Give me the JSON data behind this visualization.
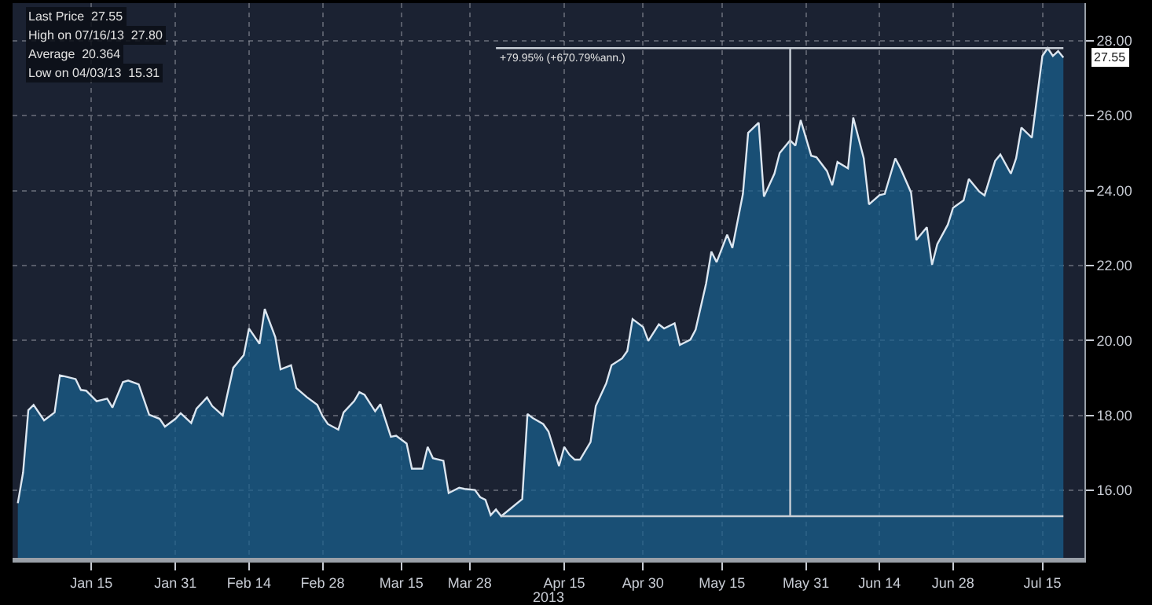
{
  "chart_data": {
    "type": "area",
    "xlabel": "2013",
    "xlim": [
      "2012-12-31",
      "2013-07-23"
    ],
    "xticks": [
      {
        "value": "2013-01-15",
        "label": "Jan 15"
      },
      {
        "value": "2013-01-31",
        "label": "Jan 31"
      },
      {
        "value": "2013-02-14",
        "label": "Feb 14"
      },
      {
        "value": "2013-02-28",
        "label": "Feb 28"
      },
      {
        "value": "2013-03-15",
        "label": "Mar 15"
      },
      {
        "value": "2013-03-28",
        "label": "Mar 28"
      },
      {
        "value": "2013-04-15",
        "label": "Apr 15"
      },
      {
        "value": "2013-04-30",
        "label": "Apr 30"
      },
      {
        "value": "2013-05-15",
        "label": "May 15"
      },
      {
        "value": "2013-05-31",
        "label": "May 31"
      },
      {
        "value": "2013-06-14",
        "label": "Jun 14"
      },
      {
        "value": "2013-06-28",
        "label": "Jun 28"
      },
      {
        "value": "2013-07-15",
        "label": "Jul 15"
      }
    ],
    "ylim": [
      14.2,
      29.0
    ],
    "yticks": [
      {
        "value": 16,
        "label": "16.00"
      },
      {
        "value": 18,
        "label": "18.00"
      },
      {
        "value": 20,
        "label": "20.00"
      },
      {
        "value": 22,
        "label": "22.00"
      },
      {
        "value": 24,
        "label": "24.00"
      },
      {
        "value": 26,
        "label": "26.00"
      },
      {
        "value": 28,
        "label": "28.00"
      }
    ],
    "grid": true,
    "series": [
      {
        "color": "#dce6f0",
        "x": [
          "2013-01-01",
          "2013-01-02",
          "2013-01-03",
          "2013-01-04",
          "2013-01-06",
          "2013-01-08",
          "2013-01-09",
          "2013-01-10",
          "2013-01-12",
          "2013-01-13",
          "2013-01-14",
          "2013-01-16",
          "2013-01-18",
          "2013-01-19",
          "2013-01-21",
          "2013-01-22",
          "2013-01-24",
          "2013-01-26",
          "2013-01-28",
          "2013-01-29",
          "2013-01-31",
          "2013-02-01",
          "2013-02-03",
          "2013-02-04",
          "2013-02-06",
          "2013-02-07",
          "2013-02-09",
          "2013-02-11",
          "2013-02-13",
          "2013-02-14",
          "2013-02-16",
          "2013-02-17",
          "2013-02-19",
          "2013-02-20",
          "2013-02-22",
          "2013-02-23",
          "2013-02-25",
          "2013-02-27",
          "2013-02-28",
          "2013-03-01",
          "2013-03-03",
          "2013-03-04",
          "2013-03-06",
          "2013-03-07",
          "2013-03-08",
          "2013-03-10",
          "2013-03-11",
          "2013-03-13",
          "2013-03-14",
          "2013-03-16",
          "2013-03-17",
          "2013-03-19",
          "2013-03-20",
          "2013-03-21",
          "2013-03-23",
          "2013-03-24",
          "2013-03-26",
          "2013-03-27",
          "2013-03-29",
          "2013-03-30",
          "2013-03-31",
          "2013-04-01",
          "2013-04-02",
          "2013-04-03",
          "2013-04-07",
          "2013-04-08",
          "2013-04-09",
          "2013-04-11",
          "2013-04-12",
          "2013-04-14",
          "2013-04-15",
          "2013-04-16",
          "2013-04-17",
          "2013-04-18",
          "2013-04-20",
          "2013-04-21",
          "2013-04-23",
          "2013-04-24",
          "2013-04-26",
          "2013-04-27",
          "2013-04-28",
          "2013-04-30",
          "2013-05-01",
          "2013-05-03",
          "2013-05-04",
          "2013-05-06",
          "2013-05-07",
          "2013-05-09",
          "2013-05-10",
          "2013-05-12",
          "2013-05-13",
          "2013-05-14",
          "2013-05-16",
          "2013-05-17",
          "2013-05-19",
          "2013-05-20",
          "2013-05-22",
          "2013-05-23",
          "2013-05-25",
          "2013-05-26",
          "2013-05-28",
          "2013-05-29",
          "2013-05-30",
          "2013-06-01",
          "2013-06-02",
          "2013-06-04",
          "2013-06-05",
          "2013-06-06",
          "2013-06-08",
          "2013-06-09",
          "2013-06-11",
          "2013-06-12",
          "2013-06-14",
          "2013-06-15",
          "2013-06-17",
          "2013-06-18",
          "2013-06-20",
          "2013-06-21",
          "2013-06-23",
          "2013-06-24",
          "2013-06-25",
          "2013-06-27",
          "2013-06-28",
          "2013-06-30",
          "2013-07-01",
          "2013-07-03",
          "2013-07-04",
          "2013-07-06",
          "2013-07-07",
          "2013-07-09",
          "2013-07-10",
          "2013-07-11",
          "2013-07-13",
          "2013-07-15",
          "2013-07-16",
          "2013-07-17",
          "2013-07-18",
          "2013-07-19"
        ],
        "values": [
          15.66,
          16.48,
          18.14,
          18.28,
          17.87,
          18.08,
          19.07,
          19.04,
          18.97,
          18.68,
          18.66,
          18.38,
          18.45,
          18.21,
          18.89,
          18.93,
          18.83,
          18.02,
          17.91,
          17.7,
          17.91,
          18.06,
          17.8,
          18.18,
          18.48,
          18.25,
          18.0,
          19.27,
          19.61,
          20.32,
          19.91,
          20.84,
          20.09,
          19.23,
          19.34,
          18.73,
          18.49,
          18.28,
          17.98,
          17.77,
          17.62,
          18.08,
          18.38,
          18.62,
          18.55,
          18.11,
          18.3,
          17.43,
          17.46,
          17.25,
          16.58,
          16.58,
          17.16,
          16.86,
          16.79,
          15.93,
          16.07,
          16.04,
          16.01,
          15.82,
          15.75,
          15.34,
          15.49,
          15.31,
          15.77,
          18.04,
          17.93,
          17.77,
          17.57,
          16.65,
          17.16,
          16.95,
          16.82,
          16.82,
          17.29,
          18.25,
          18.86,
          19.34,
          19.52,
          19.72,
          20.57,
          20.36,
          19.99,
          20.43,
          20.32,
          20.46,
          19.88,
          20.02,
          20.29,
          21.52,
          22.37,
          22.09,
          22.82,
          22.47,
          23.91,
          25.54,
          25.81,
          23.84,
          24.45,
          25.0,
          25.34,
          25.2,
          25.88,
          24.93,
          24.89,
          24.52,
          24.14,
          24.76,
          24.59,
          25.95,
          24.86,
          23.63,
          23.88,
          23.91,
          24.86,
          24.59,
          23.95,
          22.68,
          23.02,
          22.02,
          22.57,
          23.09,
          23.54,
          23.74,
          24.31,
          23.97,
          23.87,
          24.79,
          24.96,
          24.45,
          24.86,
          25.68,
          25.41,
          27.59,
          27.8,
          27.59,
          27.72,
          27.55
        ]
      },
      {
        "type": "line",
        "color": "#c8ced6",
        "x": [
          "2013-04-03",
          "2013-07-19"
        ],
        "values": [
          15.31,
          15.31
        ]
      },
      {
        "type": "line",
        "color": "#c8ced6",
        "x": [
          "2013-04-02",
          "2013-07-19"
        ],
        "values": [
          27.8,
          27.8
        ]
      },
      {
        "type": "line",
        "color": "#c8ced6",
        "x": [
          "2013-05-28",
          "2013-05-28"
        ],
        "values": [
          15.31,
          27.8
        ]
      }
    ],
    "annotations": [
      "Last Price  27.55",
      "High on 07/16/13  27.80",
      "Average  20.364",
      "Low on 04/03/13  15.31",
      {
        "text": "+79.95% (+670.79%ann.)",
        "x": "2013-04-02",
        "y": 27.8
      },
      {
        "text": "27.55",
        "x": "2013-07-19",
        "y": 27.55
      }
    ]
  }
}
